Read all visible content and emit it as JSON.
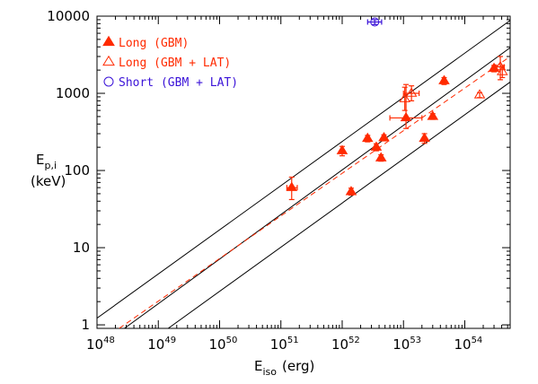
{
  "chart_data": {
    "type": "scatter",
    "xscale": "log",
    "yscale": "log",
    "xlim": [
      1e+48,
      5.5e+54
    ],
    "ylim": [
      0.9,
      10000
    ],
    "xlabel": {
      "main": "E",
      "sub": "iso",
      "unit": "(erg)"
    },
    "ylabel": {
      "main": "E",
      "sub": "p,i",
      "unit": "(keV)"
    },
    "x_ticks": [
      {
        "value": 1e+48,
        "base": "10",
        "exp": "48"
      },
      {
        "value": 1e+49,
        "base": "10",
        "exp": "49"
      },
      {
        "value": 1e+50,
        "base": "10",
        "exp": "50"
      },
      {
        "value": 1e+51,
        "base": "10",
        "exp": "51"
      },
      {
        "value": 1e+52,
        "base": "10",
        "exp": "52"
      },
      {
        "value": 1e+53,
        "base": "10",
        "exp": "53"
      },
      {
        "value": 1e+54,
        "base": "10",
        "exp": "54"
      }
    ],
    "y_ticks": [
      {
        "value": 1,
        "label": "1"
      },
      {
        "value": 10,
        "label": "10"
      },
      {
        "value": 100,
        "label": "100"
      },
      {
        "value": 1000,
        "label": "1000"
      },
      {
        "value": 10000,
        "label": "10000"
      }
    ],
    "legend": {
      "placement": "top-left",
      "entries": [
        {
          "label": "Long (GBM)",
          "marker": "filled-triangle",
          "color": "#ff2a00"
        },
        {
          "label": "Long (GBM + LAT)",
          "marker": "open-triangle",
          "color": "#ff2a00"
        },
        {
          "label": "Short (GBM + LAT)",
          "marker": "open-circle",
          "color": "#3a12d8"
        }
      ]
    },
    "lines": [
      {
        "style": "solid",
        "color": "#000000",
        "points": [
          [
            1e+48,
            1.22
          ],
          [
            5.5e+54,
            8800
          ]
        ]
      },
      {
        "style": "solid",
        "color": "#000000",
        "points": [
          [
            2.8e+48,
            0.9
          ],
          [
            5.5e+54,
            3900
          ]
        ]
      },
      {
        "style": "solid",
        "color": "#000000",
        "points": [
          [
            1.45e+49,
            0.9
          ],
          [
            5.5e+54,
            1400
          ]
        ]
      },
      {
        "style": "dashed",
        "color": "#ff2a00",
        "points": [
          [
            2.3e+48,
            0.9
          ],
          [
            5.5e+54,
            3000
          ]
        ]
      }
    ],
    "series": [
      {
        "name": "Long (GBM)",
        "marker": "filled-triangle",
        "color": "#ff2a00",
        "points": [
          {
            "x": 1.5e+51,
            "y": 60,
            "xerr": [
              1.25e+51,
              1.85e+51
            ],
            "yerr": [
              42,
              82
            ]
          },
          {
            "x": 1e+52,
            "y": 180,
            "yerr": [
              155,
              205
            ]
          },
          {
            "x": 1.4e+52,
            "y": 53,
            "yerr": [
              48,
              59
            ]
          },
          {
            "x": 2.6e+52,
            "y": 260,
            "yerr": [
              235,
              285
            ]
          },
          {
            "x": 3.6e+52,
            "y": 200,
            "yerr": [
              180,
              222
            ]
          },
          {
            "x": 4.3e+52,
            "y": 145,
            "yerr": [
              132,
              160
            ]
          },
          {
            "x": 4.8e+52,
            "y": 265,
            "yerr": [
              242,
              290
            ]
          },
          {
            "x": 1.1e+53,
            "y": 480,
            "xerr": [
              6e+52,
              2e+53
            ],
            "yerr": [
              350,
              1300
            ]
          },
          {
            "x": 2.2e+53,
            "y": 260,
            "yerr": [
              225,
              300
            ]
          },
          {
            "x": 3e+53,
            "y": 500,
            "yerr": [
              460,
              545
            ]
          },
          {
            "x": 4.6e+53,
            "y": 1450,
            "yerr": [
              1300,
              1600
            ]
          },
          {
            "x": 3e+54,
            "y": 2100,
            "yerr": [
              1900,
              2300
            ]
          }
        ]
      },
      {
        "name": "Long (GBM + LAT)",
        "marker": "open-triangle",
        "color": "#ff2a00",
        "points": [
          {
            "x": 1.05e+53,
            "y": 850,
            "yerr": [
              600,
              1200
            ]
          },
          {
            "x": 1.35e+53,
            "y": 1000,
            "xerr": [
              1e+53,
              1.8e+53
            ],
            "yerr": [
              800,
              1250
            ]
          },
          {
            "x": 1.75e+54,
            "y": 950,
            "yerr": [
              880,
              1020
            ]
          },
          {
            "x": 3.8e+54,
            "y": 2200,
            "xerr": [
              3.2e+54,
              4.4e+54
            ],
            "yerr": [
              1500,
              3000
            ]
          },
          {
            "x": 4.1e+54,
            "y": 1900,
            "yerr": [
              1600,
              2300
            ]
          }
        ]
      },
      {
        "name": "Short (GBM + LAT)",
        "marker": "open-circle",
        "color": "#3a12d8",
        "points": [
          {
            "x": 3.4e+52,
            "y": 8400,
            "xerr": [
              2.6e+52,
              4.4e+52
            ],
            "yerr": [
              7800,
              9000
            ]
          }
        ]
      }
    ]
  }
}
